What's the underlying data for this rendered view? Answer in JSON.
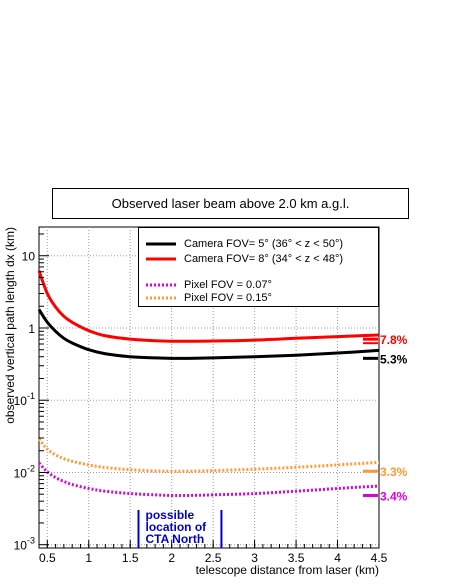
{
  "chart_data": {
    "type": "line",
    "title": "Observed laser beam above 2.0 km a.g.l.",
    "xlabel": "telescope distance from laser (km)",
    "ylabel": "observed vertical path length dx (km)",
    "x_scale": "linear",
    "y_scale": "log",
    "xlim": [
      0.4,
      4.5
    ],
    "ylim": [
      0.0009,
      25
    ],
    "grid": true,
    "legend_position": "top-right",
    "x_ticks": [
      "0.5",
      "1",
      "1.5",
      "2",
      "2.5",
      "3",
      "3.5",
      "4",
      "4.5"
    ],
    "y_ticks": [
      {
        "base": "10",
        "exp": "-3"
      },
      {
        "base": "10",
        "exp": "-2"
      },
      {
        "base": "10",
        "exp": "-1"
      },
      {
        "base": "1",
        "exp": ""
      },
      {
        "base": "10",
        "exp": ""
      }
    ],
    "x": [
      0.4,
      0.5,
      0.6,
      0.7,
      0.8,
      1.0,
      1.2,
      1.5,
      1.8,
      2.0,
      2.2,
      2.5,
      3.0,
      3.5,
      4.0,
      4.5
    ],
    "series": [
      {
        "name": "Camera FOV= 5°  (36° < z < 50°)",
        "color": "#000000",
        "style": "solid",
        "values": [
          1.8,
          1.2,
          0.9,
          0.72,
          0.62,
          0.5,
          0.44,
          0.4,
          0.385,
          0.38,
          0.38,
          0.385,
          0.4,
          0.42,
          0.45,
          0.49
        ]
      },
      {
        "name": "Camera FOV= 8°  (34° < z < 48°)",
        "color": "#ff0000",
        "style": "solid",
        "values": [
          6.2,
          3.0,
          1.95,
          1.45,
          1.2,
          0.92,
          0.78,
          0.7,
          0.665,
          0.655,
          0.655,
          0.66,
          0.68,
          0.72,
          0.76,
          0.8
        ]
      },
      {
        "name": "Pixel FOV = 0.07°",
        "color": "#dd00dd",
        "style": "dotted",
        "values": [
          0.0135,
          0.0102,
          0.0085,
          0.0075,
          0.0068,
          0.006,
          0.0055,
          0.0051,
          0.0049,
          0.0048,
          0.0048,
          0.0049,
          0.0051,
          0.0055,
          0.006,
          0.0065
        ]
      },
      {
        "name": "Pixel FOV = 0.15°",
        "color": "#ff9933",
        "style": "dotted",
        "values": [
          0.029,
          0.021,
          0.0175,
          0.0155,
          0.0143,
          0.0127,
          0.0117,
          0.0109,
          0.0105,
          0.0104,
          0.0104,
          0.0106,
          0.0111,
          0.0118,
          0.0127,
          0.0138
        ]
      }
    ],
    "right_markers": [
      {
        "text": "7.8%",
        "color": "#ff0000",
        "y": 0.7
      },
      {
        "text": "5.3%",
        "color": "#000000",
        "y": 0.38
      },
      {
        "text": "3.3%",
        "color": "#ff9933",
        "y": 0.0104
      },
      {
        "text": "3.4%",
        "color": "#dd00dd",
        "y": 0.0048
      }
    ],
    "annotation": {
      "lines": [
        "possible",
        "location of",
        "CTA North"
      ],
      "color": "#0000cc",
      "x_range": [
        1.6,
        2.6
      ]
    }
  }
}
